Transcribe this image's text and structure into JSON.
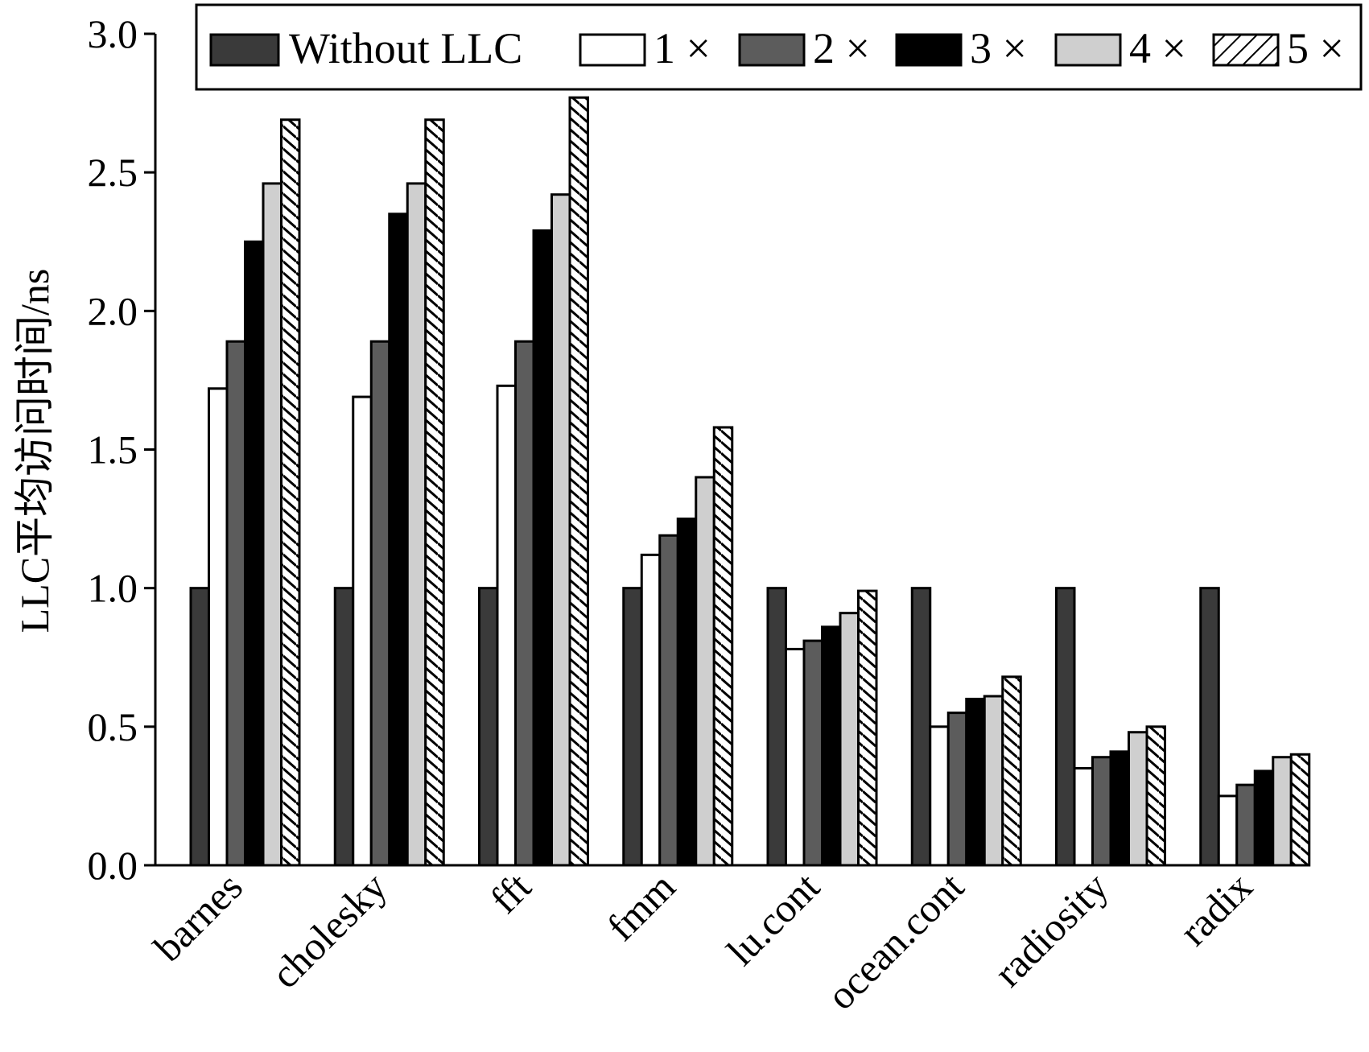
{
  "chart_data": {
    "type": "bar",
    "title": "",
    "xlabel": "",
    "ylabel": "LLC平均访问时间/ns",
    "ylim": [
      0,
      3.0
    ],
    "yticks": [
      "0.0",
      "0.5",
      "1.0",
      "1.5",
      "2.0",
      "2.5",
      "3.0"
    ],
    "grid": false,
    "legend_position": "top",
    "categories": [
      "barnes",
      "cholesky",
      "fft",
      "fmm",
      "lu.cont",
      "ocean.cont",
      "radiosity",
      "radix"
    ],
    "series": [
      {
        "name": "Without LLC",
        "fill": "#3a3a3a",
        "pattern": "solid",
        "values": [
          1.0,
          1.0,
          1.0,
          1.0,
          1.0,
          1.0,
          1.0,
          1.0
        ]
      },
      {
        "name": "1 ×",
        "fill": "#ffffff",
        "pattern": "solid",
        "values": [
          1.72,
          1.69,
          1.73,
          1.12,
          0.78,
          0.5,
          0.35,
          0.25
        ]
      },
      {
        "name": "2 ×",
        "fill": "#5c5c5c",
        "pattern": "solid",
        "values": [
          1.89,
          1.89,
          1.89,
          1.19,
          0.81,
          0.55,
          0.39,
          0.29
        ]
      },
      {
        "name": "3 ×",
        "fill": "#000000",
        "pattern": "solid",
        "values": [
          2.25,
          2.35,
          2.29,
          1.25,
          0.86,
          0.6,
          0.41,
          0.34
        ]
      },
      {
        "name": "4 ×",
        "fill": "#cfcfcf",
        "pattern": "solid",
        "values": [
          2.46,
          2.46,
          2.42,
          1.4,
          0.91,
          0.61,
          0.48,
          0.39
        ]
      },
      {
        "name": "5 ×",
        "fill": "#ffffff",
        "pattern": "hatch",
        "values": [
          2.69,
          2.69,
          2.77,
          1.58,
          0.99,
          0.68,
          0.5,
          0.4
        ]
      }
    ]
  }
}
